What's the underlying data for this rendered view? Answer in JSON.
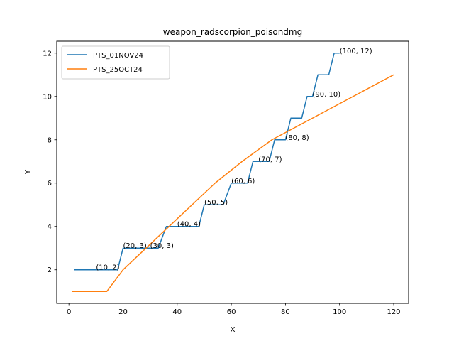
{
  "chart_data": {
    "type": "line",
    "title": "weapon_radscorpion_poisondmg",
    "xlabel": "X",
    "ylabel": "Y",
    "xlim": [
      -4.5,
      125.5
    ],
    "ylim": [
      0.45,
      12.55
    ],
    "xticks": [
      0,
      20,
      40,
      60,
      80,
      100,
      120
    ],
    "yticks": [
      2,
      4,
      6,
      8,
      10,
      12
    ],
    "grid": false,
    "legend_position": "top-left",
    "series": [
      {
        "name": "PTS_01NOV24",
        "color": "#1f77b4",
        "x": [
          2,
          18,
          20,
          30,
          33,
          36,
          48,
          50,
          57,
          60,
          66,
          68,
          74,
          76,
          80,
          82,
          86,
          88,
          90,
          92,
          96,
          98,
          100
        ],
        "y": [
          2,
          2,
          3,
          3,
          3,
          4,
          4,
          5,
          5,
          6,
          6,
          7,
          7,
          8,
          8,
          9,
          9,
          10,
          10,
          11,
          11,
          12,
          12
        ]
      },
      {
        "name": "PTS_25OCT24",
        "color": "#ff7f0e",
        "x": [
          1,
          14,
          20,
          54,
          64,
          75,
          120
        ],
        "y": [
          1,
          1,
          2,
          6,
          7,
          8,
          11
        ]
      }
    ],
    "annotations": [
      {
        "text": "(10, 2)",
        "x": 10,
        "y": 2
      },
      {
        "text": "(20, 3)",
        "x": 20,
        "y": 3
      },
      {
        "text": "(30, 3)",
        "x": 30,
        "y": 3
      },
      {
        "text": "(40, 4)",
        "x": 40,
        "y": 4
      },
      {
        "text": "(50, 5)",
        "x": 50,
        "y": 5
      },
      {
        "text": "(60, 6)",
        "x": 60,
        "y": 6
      },
      {
        "text": "(70, 7)",
        "x": 70,
        "y": 7
      },
      {
        "text": "(80, 8)",
        "x": 80,
        "y": 8
      },
      {
        "text": "(90, 10)",
        "x": 90,
        "y": 10
      },
      {
        "text": "(100, 12)",
        "x": 100,
        "y": 12
      }
    ]
  }
}
